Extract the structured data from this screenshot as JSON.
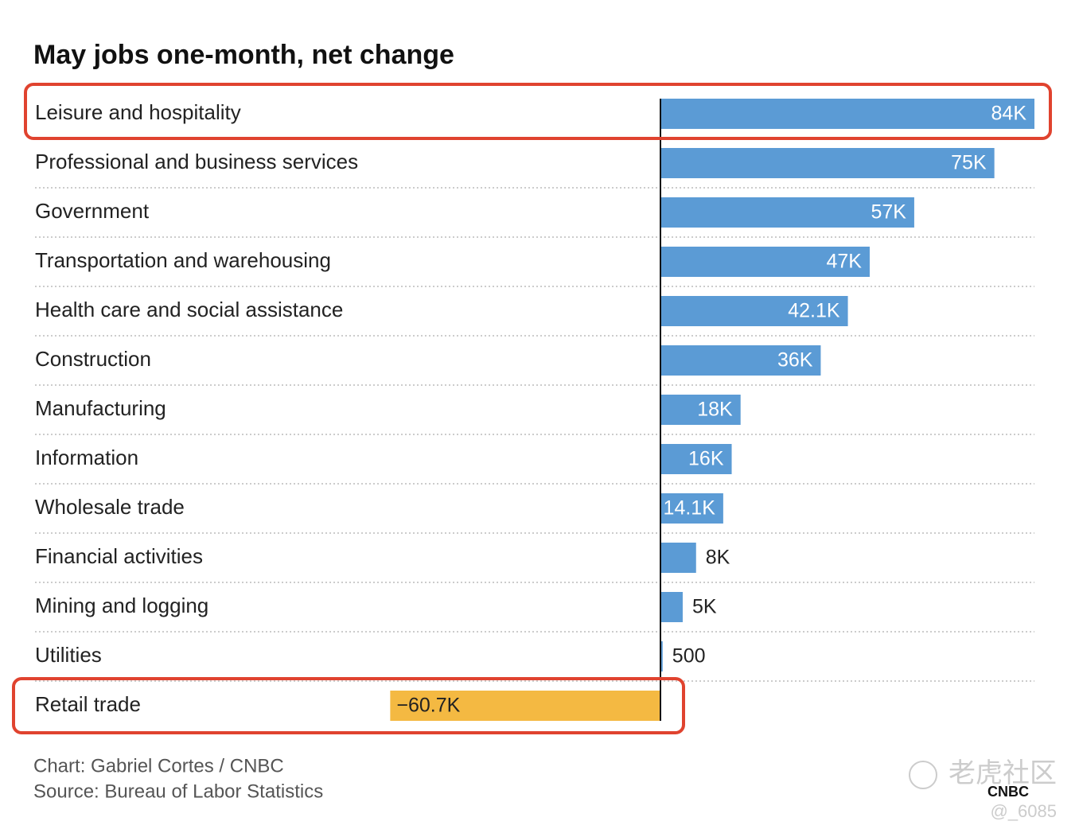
{
  "chart_data": {
    "type": "barh",
    "title": "May jobs one-month, net change",
    "categories": [
      "Leisure and hospitality",
      "Professional and business services",
      "Government",
      "Transportation and warehousing",
      "Health care and social assistance",
      "Construction",
      "Manufacturing",
      "Information",
      "Wholesale trade",
      "Financial activities",
      "Mining and logging",
      "Utilities",
      "Retail trade"
    ],
    "values": [
      84000,
      75000,
      57000,
      47000,
      42100,
      36000,
      18000,
      16000,
      14100,
      8000,
      5000,
      500,
      -60700
    ],
    "value_labels": [
      "84K",
      "75K",
      "57K",
      "47K",
      "42.1K",
      "36K",
      "18K",
      "16K",
      "14.1K",
      "8K",
      "5K",
      "500",
      "−60.7K"
    ],
    "color": "#5b9bd5",
    "negative_color": "#f4b942",
    "credit": "Chart: Gabriel Cortes / CNBC",
    "source": "Source: Bureau of Labor Statistics",
    "logo": "CNBC",
    "watermark": "老虎社区",
    "watermark_handle": "@_6085"
  }
}
